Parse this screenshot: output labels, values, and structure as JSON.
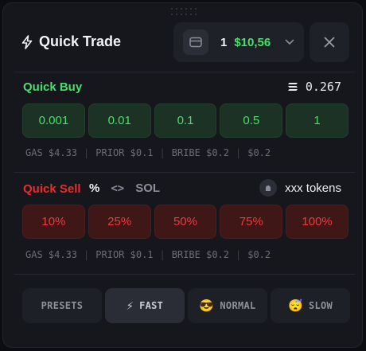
{
  "header": {
    "title": "Quick Trade",
    "wallet_count": "1",
    "wallet_balance": "$10,56"
  },
  "buy": {
    "label": "Quick Buy",
    "stack_value": "0.267",
    "amounts": [
      "0.001",
      "0.01",
      "0.1",
      "0.5",
      "1"
    ],
    "fees": [
      "GAS $4.33",
      "PRIOR $0.1",
      "BRIBE $0.2",
      "$0.2"
    ]
  },
  "sell": {
    "label": "Quick Sell",
    "opt_percent": "%",
    "opt_code": "<>",
    "opt_sol": "SOL",
    "tokens": "xxx tokens",
    "amounts": [
      "10%",
      "25%",
      "50%",
      "75%",
      "100%"
    ],
    "fees": [
      "GAS $4.33",
      "PRIOR $0.1",
      "BRIBE $0.2",
      "$0.2"
    ]
  },
  "presets": {
    "presets_label": "PRESETS",
    "fast_label": "FAST",
    "normal_label": "NORMAL",
    "slow_label": "SLOW",
    "fast_icon": "⚡",
    "normal_icon": "😎",
    "slow_icon": "😴",
    "active": "FAST"
  },
  "colors": {
    "buy_accent": "#4ade6b",
    "sell_accent": "#ef2a2a",
    "panel_bg": "#16171d"
  }
}
